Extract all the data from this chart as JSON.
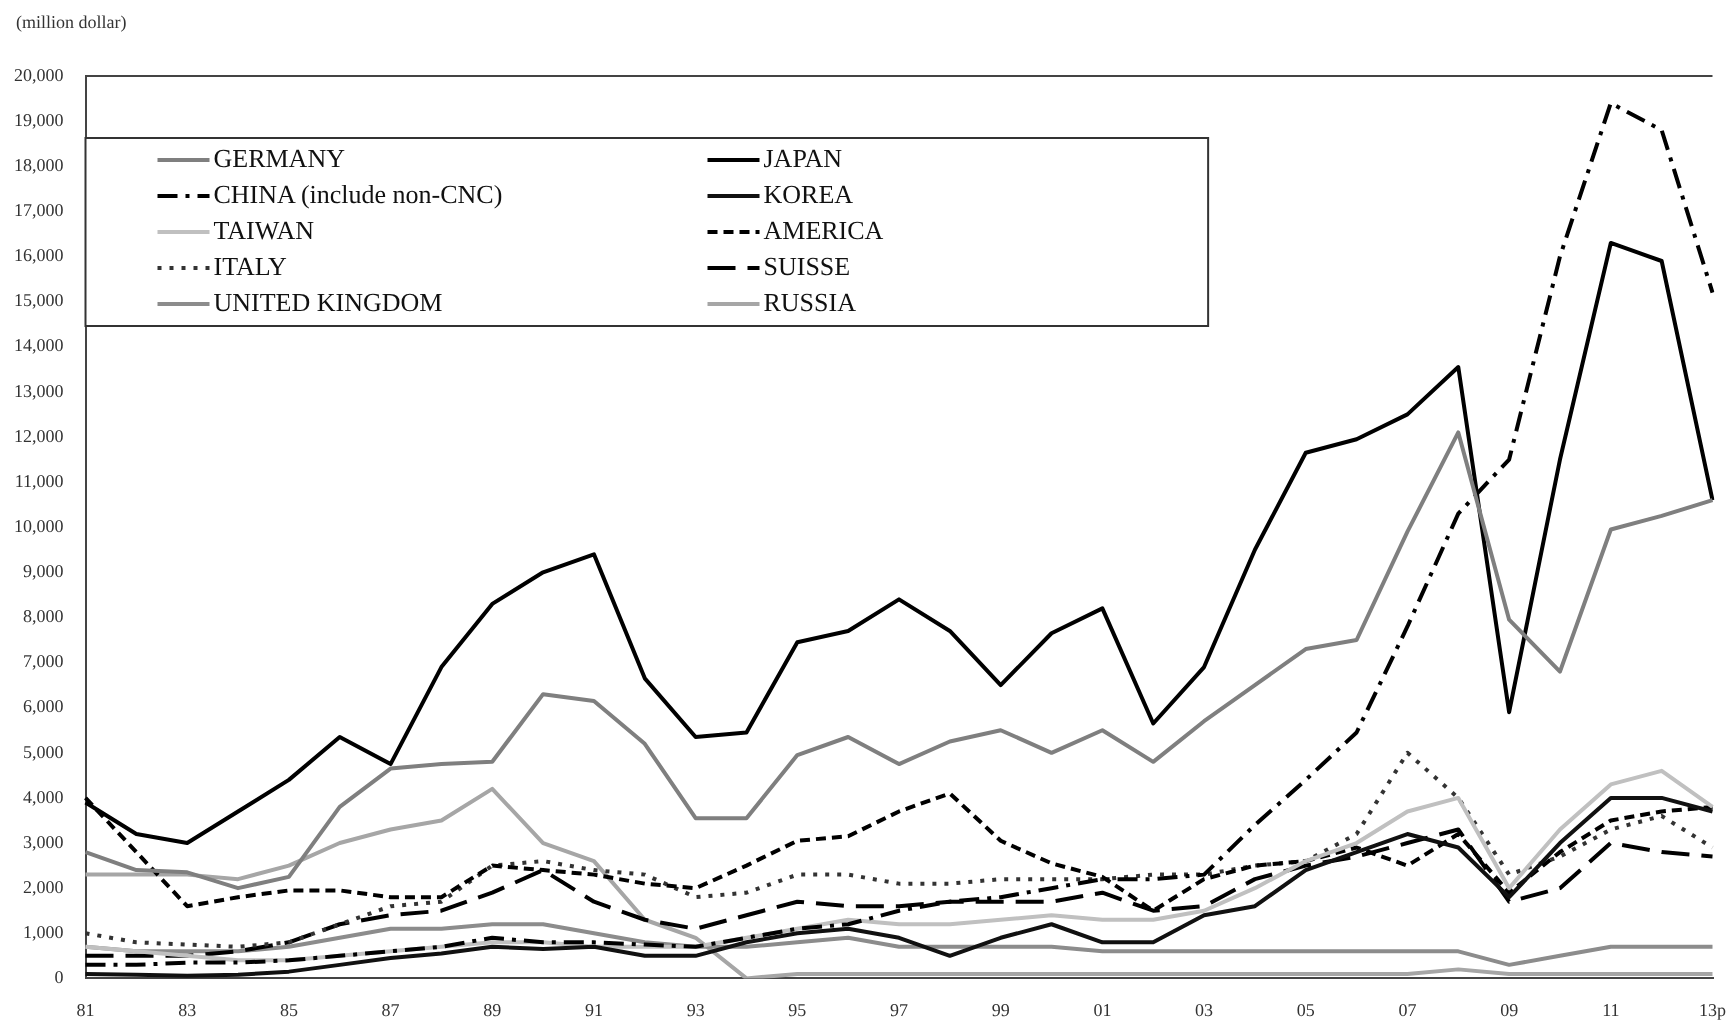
{
  "chart_data": {
    "type": "line",
    "ylabel": "(million dollar)",
    "categories": [
      "81",
      null,
      "83",
      null,
      "85",
      null,
      "87",
      null,
      "89",
      null,
      "91",
      null,
      "93",
      null,
      "95",
      null,
      "97",
      null,
      "99",
      null,
      "01",
      null,
      "03",
      null,
      "05",
      null,
      "07",
      null,
      "09",
      null,
      "11",
      null,
      "13p"
    ],
    "ylim": [
      0,
      20000
    ],
    "yticks": [
      0,
      {
        "value": 1000,
        "label": "1,000"
      },
      {
        "value": 2000,
        "label": "2,000"
      },
      {
        "value": 3000,
        "label": "3,000"
      },
      {
        "value": 4000,
        "label": "4,000"
      },
      {
        "value": 5000,
        "label": "5,000"
      },
      {
        "value": 6000,
        "label": "6,000"
      },
      {
        "value": 7000,
        "label": "7,000"
      },
      {
        "value": 8000,
        "label": "8,000"
      },
      {
        "value": 9000,
        "label": "9,000"
      },
      {
        "value": 10000,
        "label": "10,000"
      },
      {
        "value": 11000,
        "label": "11,000"
      },
      {
        "value": 12000,
        "label": "12,000"
      },
      {
        "value": 13000,
        "label": "13,000"
      },
      {
        "value": 14000,
        "label": "14,000"
      },
      {
        "value": 15000,
        "label": "15,000"
      },
      {
        "value": 16000,
        "label": "16,000"
      },
      {
        "value": 17000,
        "label": "17,000"
      },
      {
        "value": 18000,
        "label": "18,000"
      },
      {
        "value": 19000,
        "label": "19,000"
      },
      {
        "value": 20000,
        "label": "20,000"
      }
    ],
    "grid": false,
    "legend": "top left",
    "series": [
      {
        "name": "GERMANY",
        "color": "#7f7f7f",
        "line_style": "solid",
        "values": [
          2800,
          2400,
          2350,
          2000,
          2250,
          3800,
          4650,
          4750,
          4800,
          6300,
          6150,
          5200,
          3550,
          3550,
          4950,
          5350,
          4750,
          5250,
          5500,
          5000,
          5500,
          4800,
          5700,
          6500,
          7300,
          7500,
          9900,
          12100,
          7950,
          6800,
          9950,
          10250,
          10600
        ]
      },
      {
        "name": "JAPAN",
        "color": "#000000",
        "line_style": "solid",
        "values": [
          3900,
          3200,
          3000,
          3700,
          4400,
          5350,
          4750,
          6900,
          8300,
          9000,
          9400,
          6650,
          5350,
          5450,
          7450,
          7700,
          8400,
          7700,
          6500,
          7650,
          8200,
          5650,
          6900,
          9500,
          11650,
          11950,
          12500,
          13550,
          5900,
          11500,
          16300,
          15900,
          10600
        ]
      },
      {
        "name": "CHINA (include non-CNC)",
        "color": "#000000",
        "line_style": "dashdot",
        "values": [
          300,
          300,
          350,
          350,
          400,
          500,
          600,
          700,
          900,
          800,
          800,
          750,
          700,
          900,
          1100,
          1200,
          1500,
          1700,
          1800,
          2000,
          2200,
          2200,
          2300,
          3400,
          4400,
          5450,
          7800,
          10300,
          11500,
          16000,
          19400,
          18800,
          15200
        ]
      },
      {
        "name": "KOREA",
        "color": "#111111",
        "line_style": "solid",
        "values": [
          100,
          80,
          60,
          80,
          150,
          300,
          450,
          550,
          700,
          650,
          700,
          500,
          500,
          800,
          1000,
          1100,
          900,
          500,
          900,
          1200,
          800,
          800,
          1400,
          1600,
          2400,
          2800,
          3200,
          2900,
          1800,
          3000,
          4000,
          4000,
          3700
        ]
      },
      {
        "name": "TAIWAN",
        "color": "#c0c0c0",
        "line_style": "solid",
        "values": [
          700,
          600,
          500,
          400,
          400,
          500,
          600,
          700,
          800,
          800,
          700,
          700,
          700,
          900,
          1100,
          1300,
          1200,
          1200,
          1300,
          1400,
          1300,
          1300,
          1500,
          2000,
          2600,
          3000,
          3700,
          4000,
          2000,
          3300,
          4300,
          4600,
          3800
        ]
      },
      {
        "name": "AMERICA",
        "color": "#000000",
        "line_style": "dashed",
        "values": [
          4000,
          2800,
          1600,
          1800,
          1950,
          1950,
          1800,
          1800,
          2500,
          2400,
          2300,
          2100,
          2000,
          2500,
          3050,
          3150,
          3700,
          4100,
          3050,
          2550,
          2250,
          1500,
          2200,
          2500,
          2600,
          2900,
          2500,
          3200,
          1900,
          2800,
          3500,
          3700,
          3800
        ]
      },
      {
        "name": "ITALY",
        "color": "#333333",
        "line_style": "dotted",
        "values": [
          1000,
          800,
          750,
          700,
          800,
          1200,
          1600,
          1700,
          2500,
          2600,
          2400,
          2300,
          1800,
          1900,
          2300,
          2300,
          2100,
          2100,
          2200,
          2200,
          2200,
          2300,
          2300,
          2500,
          2600,
          3200,
          5000,
          4000,
          2300,
          2700,
          3300,
          3600,
          2900
        ]
      },
      {
        "name": "SUISSE",
        "color": "#000000",
        "line_style": "longdash",
        "values": [
          500,
          500,
          500,
          600,
          800,
          1200,
          1400,
          1500,
          1900,
          2400,
          1700,
          1300,
          1100,
          1400,
          1700,
          1600,
          1600,
          1700,
          1700,
          1700,
          1900,
          1500,
          1600,
          2200,
          2500,
          2700,
          3000,
          3300,
          1700,
          2000,
          3000,
          2800,
          2700
        ]
      },
      {
        "name": "UNITED KINGDOM",
        "color": "#8c8c8c",
        "line_style": "solid",
        "values": [
          700,
          600,
          600,
          600,
          700,
          900,
          1100,
          1100,
          1200,
          1200,
          1000,
          800,
          700,
          700,
          800,
          900,
          700,
          700,
          700,
          700,
          600,
          600,
          600,
          600,
          600,
          600,
          600,
          600,
          300,
          500,
          700,
          700,
          700
        ]
      },
      {
        "name": "RUSSIA",
        "color": "#a6a6a6",
        "line_style": "solid",
        "values": [
          2300,
          2300,
          2300,
          2200,
          2500,
          3000,
          3300,
          3500,
          4200,
          3000,
          2600,
          1300,
          900,
          0,
          100,
          100,
          100,
          100,
          100,
          100,
          100,
          100,
          100,
          100,
          100,
          100,
          100,
          200,
          100,
          100,
          100,
          100,
          100
        ]
      }
    ]
  }
}
